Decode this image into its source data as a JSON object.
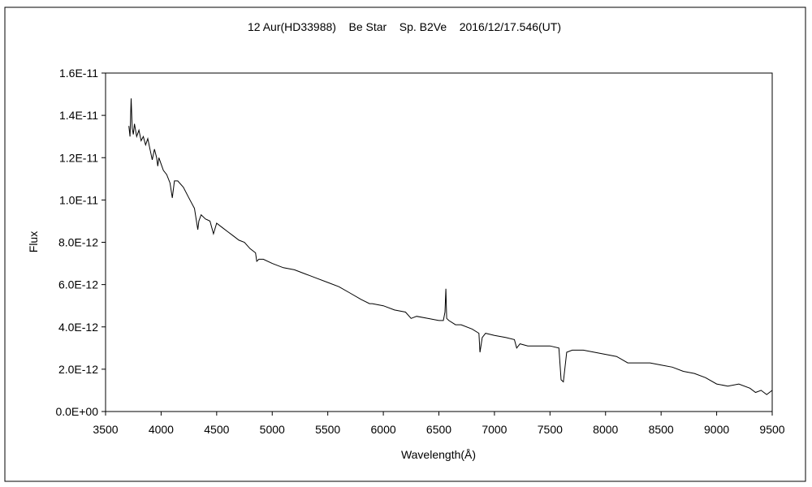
{
  "chart_data": {
    "type": "line",
    "title": "12 Aur(HD33988)    Be Star    Sp. B2Ve    2016/12/17.546(UT)",
    "xlabel": "Wavelength(Å)",
    "ylabel": "Flux",
    "xlim": [
      3500,
      9500
    ],
    "ylim": [
      0,
      1.6e-11
    ],
    "x_ticks": [
      3500,
      4000,
      4500,
      5000,
      5500,
      6000,
      6500,
      7000,
      7500,
      8000,
      8500,
      9000,
      9500
    ],
    "x_tick_labels": [
      "3500",
      "4000",
      "4500",
      "5000",
      "5500",
      "6000",
      "6500",
      "7000",
      "7500",
      "8000",
      "8500",
      "9000",
      "9500"
    ],
    "y_ticks": [
      0,
      2e-12,
      4e-12,
      6e-12,
      8e-12,
      1e-11,
      1.2e-11,
      1.4e-11,
      1.6e-11
    ],
    "y_tick_labels": [
      "0.0E+00",
      "2.0E-12",
      "4.0E-12",
      "6.0E-12",
      "8.0E-12",
      "1.0E-11",
      "1.2E-11",
      "1.4E-11",
      "1.6E-11"
    ],
    "grid": false,
    "legend": "none",
    "line_color": "#000000",
    "series": [
      {
        "x": [
          3710,
          3720,
          3730,
          3740,
          3750,
          3760,
          3780,
          3800,
          3820,
          3840,
          3860,
          3880,
          3900,
          3920,
          3940,
          3960,
          3970,
          3980,
          4000,
          4020,
          4050,
          4080,
          4101,
          4120,
          4150,
          4200,
          4250,
          4300,
          4330,
          4340,
          4360,
          4400,
          4440,
          4471,
          4500,
          4550,
          4600,
          4650,
          4700,
          4750,
          4800,
          4850,
          4861,
          4880,
          4920,
          5000,
          5100,
          5200,
          5300,
          5400,
          5500,
          5600,
          5700,
          5800,
          5876,
          5900,
          6000,
          6100,
          6200,
          6250,
          6300,
          6400,
          6500,
          6540,
          6555,
          6563,
          6570,
          6590,
          6650,
          6700,
          6800,
          6860,
          6870,
          6890,
          6920,
          7000,
          7100,
          7180,
          7200,
          7230,
          7300,
          7400,
          7500,
          7580,
          7600,
          7620,
          7650,
          7700,
          7800,
          7900,
          8000,
          8100,
          8200,
          8300,
          8400,
          8500,
          8600,
          8700,
          8800,
          8900,
          9000,
          9100,
          9200,
          9300,
          9350,
          9400,
          9450,
          9500
        ],
        "values": [
          1.35e-11,
          1.3e-11,
          1.48e-11,
          1.34e-11,
          1.31e-11,
          1.36e-11,
          1.3e-11,
          1.33e-11,
          1.28e-11,
          1.3e-11,
          1.26e-11,
          1.29e-11,
          1.24e-11,
          1.19e-11,
          1.24e-11,
          1.2e-11,
          1.16e-11,
          1.2e-11,
          1.17e-11,
          1.14e-11,
          1.12e-11,
          1.08e-11,
          1.01e-11,
          1.09e-11,
          1.09e-11,
          1.06e-11,
          1.01e-11,
          9.6e-12,
          8.6e-12,
          9e-12,
          9.3e-12,
          9.1e-12,
          9e-12,
          8.4e-12,
          8.9e-12,
          8.7e-12,
          8.5e-12,
          8.3e-12,
          8.1e-12,
          8e-12,
          7.7e-12,
          7.5e-12,
          7.1e-12,
          7.2e-12,
          7.2e-12,
          7e-12,
          6.8e-12,
          6.7e-12,
          6.5e-12,
          6.3e-12,
          6.1e-12,
          5.9e-12,
          5.6e-12,
          5.3e-12,
          5.1e-12,
          5.1e-12,
          5e-12,
          4.8e-12,
          4.7e-12,
          4.4e-12,
          4.5e-12,
          4.4e-12,
          4.3e-12,
          4.3e-12,
          4.7e-12,
          5.8e-12,
          4.4e-12,
          4.3e-12,
          4.1e-12,
          4.1e-12,
          3.9e-12,
          3.7e-12,
          2.8e-12,
          3.5e-12,
          3.7e-12,
          3.6e-12,
          3.5e-12,
          3.4e-12,
          3e-12,
          3.2e-12,
          3.1e-12,
          3.1e-12,
          3.1e-12,
          3e-12,
          1.5e-12,
          1.4e-12,
          2.8e-12,
          2.9e-12,
          2.9e-12,
          2.8e-12,
          2.7e-12,
          2.6e-12,
          2.3e-12,
          2.3e-12,
          2.3e-12,
          2.2e-12,
          2.1e-12,
          1.9e-12,
          1.8e-12,
          1.6e-12,
          1.3e-12,
          1.2e-12,
          1.3e-12,
          1.1e-12,
          9e-13,
          1e-12,
          8e-13,
          1e-12
        ]
      }
    ]
  }
}
